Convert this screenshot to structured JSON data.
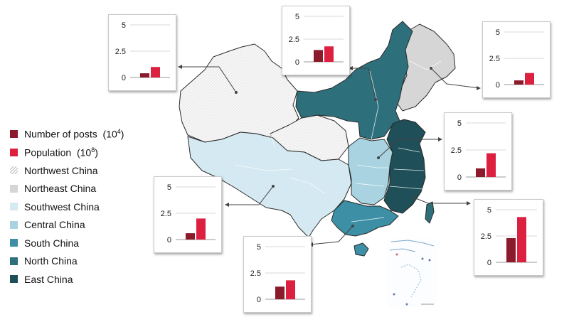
{
  "legend": {
    "posts_label": "Number of posts  (10",
    "posts_exp": "4",
    "posts_close": ")",
    "pop_label": "Population  (10",
    "pop_exp": "8",
    "pop_close": ")",
    "regions": [
      {
        "name": "Northwest China",
        "color": "#f4f4f4",
        "hatched": true
      },
      {
        "name": "Northeast China",
        "color": "#d6d6d6"
      },
      {
        "name": "Southwest China",
        "color": "#d4e9f1"
      },
      {
        "name": "Central China",
        "color": "#a9d3e1"
      },
      {
        "name": "South China",
        "color": "#3d8fa6"
      },
      {
        "name": "North China",
        "color": "#2d6f7b"
      },
      {
        "name": "East China",
        "color": "#1f4f58"
      }
    ]
  },
  "colors": {
    "posts": "#8b1a2b",
    "population": "#dc2140",
    "axis": "#555555",
    "grid": "#d9d9d9"
  },
  "chart_data": [
    {
      "type": "bar",
      "region": "Northwest China",
      "categories": [
        "Number of posts",
        "Population"
      ],
      "values": [
        0.4,
        1.0
      ],
      "ylim": [
        0,
        5
      ],
      "yticks": [
        "5",
        "2.5",
        "0"
      ]
    },
    {
      "type": "bar",
      "region": "North China",
      "categories": [
        "Number of posts",
        "Population"
      ],
      "values": [
        1.3,
        1.7
      ],
      "ylim": [
        0,
        5
      ],
      "yticks": [
        "5",
        "2.5",
        "0"
      ]
    },
    {
      "type": "bar",
      "region": "Northeast China",
      "categories": [
        "Number of posts",
        "Population"
      ],
      "values": [
        0.4,
        1.1
      ],
      "ylim": [
        0,
        5
      ],
      "yticks": [
        "5",
        "2.5",
        "0"
      ]
    },
    {
      "type": "bar",
      "region": "Central China",
      "categories": [
        "Number of posts",
        "Population"
      ],
      "values": [
        0.8,
        2.2
      ],
      "ylim": [
        0,
        5
      ],
      "yticks": [
        "5",
        "2.5",
        "0"
      ]
    },
    {
      "type": "bar",
      "region": "Southwest China",
      "categories": [
        "Number of posts",
        "Population"
      ],
      "values": [
        0.6,
        2.0
      ],
      "ylim": [
        0,
        5
      ],
      "yticks": [
        "5",
        "2.5",
        "0"
      ]
    },
    {
      "type": "bar",
      "region": "South China",
      "categories": [
        "Number of posts",
        "Population"
      ],
      "values": [
        1.2,
        1.8
      ],
      "ylim": [
        0,
        5
      ],
      "yticks": [
        "5",
        "2.5",
        "0"
      ]
    },
    {
      "type": "bar",
      "region": "East China",
      "categories": [
        "Number of posts",
        "Population"
      ],
      "values": [
        2.3,
        4.3
      ],
      "ylim": [
        0,
        5
      ],
      "yticks": [
        "5",
        "2.5",
        "0"
      ]
    }
  ]
}
